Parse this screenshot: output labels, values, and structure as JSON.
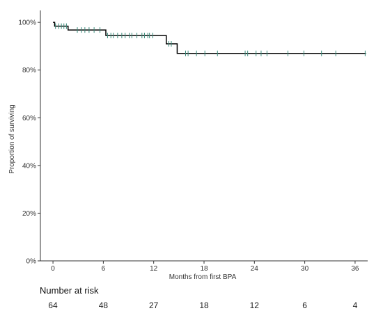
{
  "chart_data": {
    "type": "kaplan-meier",
    "xlabel": "Months from first BPA",
    "ylabel": "Proportion of surviving",
    "xlim": [
      -1.5,
      37.5
    ],
    "ylim": [
      0,
      1.05
    ],
    "x_ticks": [
      0,
      6,
      12,
      18,
      24,
      30,
      36
    ],
    "y_ticks": [
      0,
      0.2,
      0.4,
      0.6,
      0.8,
      1.0
    ],
    "y_tick_labels": [
      "0%",
      "20%",
      "40%",
      "60%",
      "80%",
      "100%"
    ],
    "grid": false,
    "survival_steps": [
      {
        "x": 0,
        "y": 1.0
      },
      {
        "x": 0.2,
        "y": 0.984
      },
      {
        "x": 1.8,
        "y": 0.968
      },
      {
        "x": 6.3,
        "y": 0.945
      },
      {
        "x": 13.5,
        "y": 0.91
      },
      {
        "x": 14.8,
        "y": 0.87
      },
      {
        "x": 37.3,
        "y": 0.87
      }
    ],
    "censor_marks": [
      {
        "x": 0.3,
        "y": 0.984
      },
      {
        "x": 0.7,
        "y": 0.984
      },
      {
        "x": 1.0,
        "y": 0.984
      },
      {
        "x": 1.3,
        "y": 0.984
      },
      {
        "x": 1.6,
        "y": 0.984
      },
      {
        "x": 2.9,
        "y": 0.968
      },
      {
        "x": 3.4,
        "y": 0.968
      },
      {
        "x": 3.8,
        "y": 0.968
      },
      {
        "x": 4.3,
        "y": 0.968
      },
      {
        "x": 4.9,
        "y": 0.968
      },
      {
        "x": 5.6,
        "y": 0.968
      },
      {
        "x": 6.5,
        "y": 0.945
      },
      {
        "x": 6.9,
        "y": 0.945
      },
      {
        "x": 7.2,
        "y": 0.945
      },
      {
        "x": 7.7,
        "y": 0.945
      },
      {
        "x": 8.2,
        "y": 0.945
      },
      {
        "x": 8.6,
        "y": 0.945
      },
      {
        "x": 9.1,
        "y": 0.945
      },
      {
        "x": 9.4,
        "y": 0.945
      },
      {
        "x": 10.0,
        "y": 0.945
      },
      {
        "x": 10.6,
        "y": 0.945
      },
      {
        "x": 10.9,
        "y": 0.945
      },
      {
        "x": 11.3,
        "y": 0.945
      },
      {
        "x": 11.5,
        "y": 0.945
      },
      {
        "x": 11.9,
        "y": 0.945
      },
      {
        "x": 13.8,
        "y": 0.91
      },
      {
        "x": 14.1,
        "y": 0.91
      },
      {
        "x": 15.8,
        "y": 0.87
      },
      {
        "x": 16.1,
        "y": 0.87
      },
      {
        "x": 17.1,
        "y": 0.87
      },
      {
        "x": 18.1,
        "y": 0.87
      },
      {
        "x": 19.6,
        "y": 0.87
      },
      {
        "x": 22.9,
        "y": 0.87
      },
      {
        "x": 23.2,
        "y": 0.87
      },
      {
        "x": 24.2,
        "y": 0.87
      },
      {
        "x": 24.8,
        "y": 0.87
      },
      {
        "x": 25.5,
        "y": 0.87
      },
      {
        "x": 28.0,
        "y": 0.87
      },
      {
        "x": 29.9,
        "y": 0.87
      },
      {
        "x": 32.0,
        "y": 0.87
      },
      {
        "x": 33.7,
        "y": 0.87
      },
      {
        "x": 37.2,
        "y": 0.87
      }
    ],
    "number_at_risk": {
      "title": "Number at risk",
      "x": [
        0,
        6,
        12,
        18,
        24,
        30,
        36
      ],
      "values": [
        "64",
        "48",
        "27",
        "18",
        "12",
        "6",
        "4"
      ]
    },
    "colors": {
      "line": "#000000",
      "censor": "#3a8a7a",
      "axis": "#333333"
    }
  }
}
